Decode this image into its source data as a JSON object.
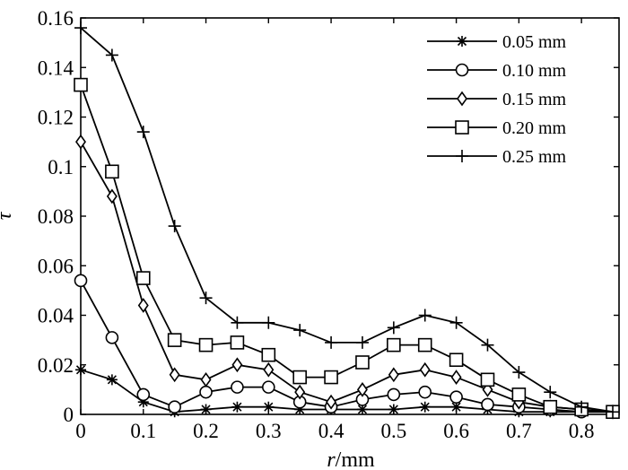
{
  "chart_data": {
    "type": "line",
    "title": "",
    "xlabel_var": "r",
    "xlabel_unit": "/mm",
    "ylabel": "τ",
    "xlim": [
      0,
      0.86
    ],
    "ylim": [
      0,
      0.16
    ],
    "xticks": [
      "0",
      "0.1",
      "0.2",
      "0.3",
      "0.4",
      "0.5",
      "0.6",
      "0.7",
      "0.8"
    ],
    "yticks": [
      "0",
      "0.02",
      "0.04",
      "0.06",
      "0.08",
      "0.1",
      "0.12",
      "0.14",
      "0.16"
    ],
    "grid": false,
    "legend_position": "top-right",
    "x": [
      0,
      0.05,
      0.1,
      0.15,
      0.2,
      0.25,
      0.3,
      0.35,
      0.4,
      0.45,
      0.5,
      0.55,
      0.6,
      0.65,
      0.7,
      0.75,
      0.8,
      0.85
    ],
    "series": [
      {
        "name": "0.05 mm",
        "marker": "star",
        "values": [
          0.018,
          0.014,
          0.005,
          0.001,
          0.002,
          0.003,
          0.003,
          0.002,
          0.002,
          0.002,
          0.002,
          0.003,
          0.003,
          0.002,
          0.001,
          0.001,
          0.001,
          0.001
        ]
      },
      {
        "name": "0.10 mm",
        "marker": "circle",
        "values": [
          0.054,
          0.031,
          0.008,
          0.003,
          0.009,
          0.011,
          0.011,
          0.005,
          0.003,
          0.006,
          0.008,
          0.009,
          0.007,
          0.004,
          0.003,
          0.002,
          0.001,
          0.001
        ]
      },
      {
        "name": "0.15 mm",
        "marker": "diamond",
        "values": [
          0.11,
          0.088,
          0.044,
          0.016,
          0.014,
          0.02,
          0.018,
          0.009,
          0.005,
          0.01,
          0.016,
          0.018,
          0.015,
          0.01,
          0.005,
          0.003,
          0.002,
          0.001
        ]
      },
      {
        "name": "0.20 mm",
        "marker": "square",
        "values": [
          0.133,
          0.098,
          0.055,
          0.03,
          0.028,
          0.029,
          0.024,
          0.015,
          0.015,
          0.021,
          0.028,
          0.028,
          0.022,
          0.014,
          0.008,
          0.003,
          0.002,
          0.001
        ]
      },
      {
        "name": "0.25 mm",
        "marker": "plus",
        "values": [
          0.156,
          0.145,
          0.114,
          0.076,
          0.047,
          0.037,
          0.037,
          0.034,
          0.029,
          0.029,
          0.035,
          0.04,
          0.037,
          0.028,
          0.017,
          0.009,
          0.003,
          0.001
        ]
      }
    ]
  }
}
